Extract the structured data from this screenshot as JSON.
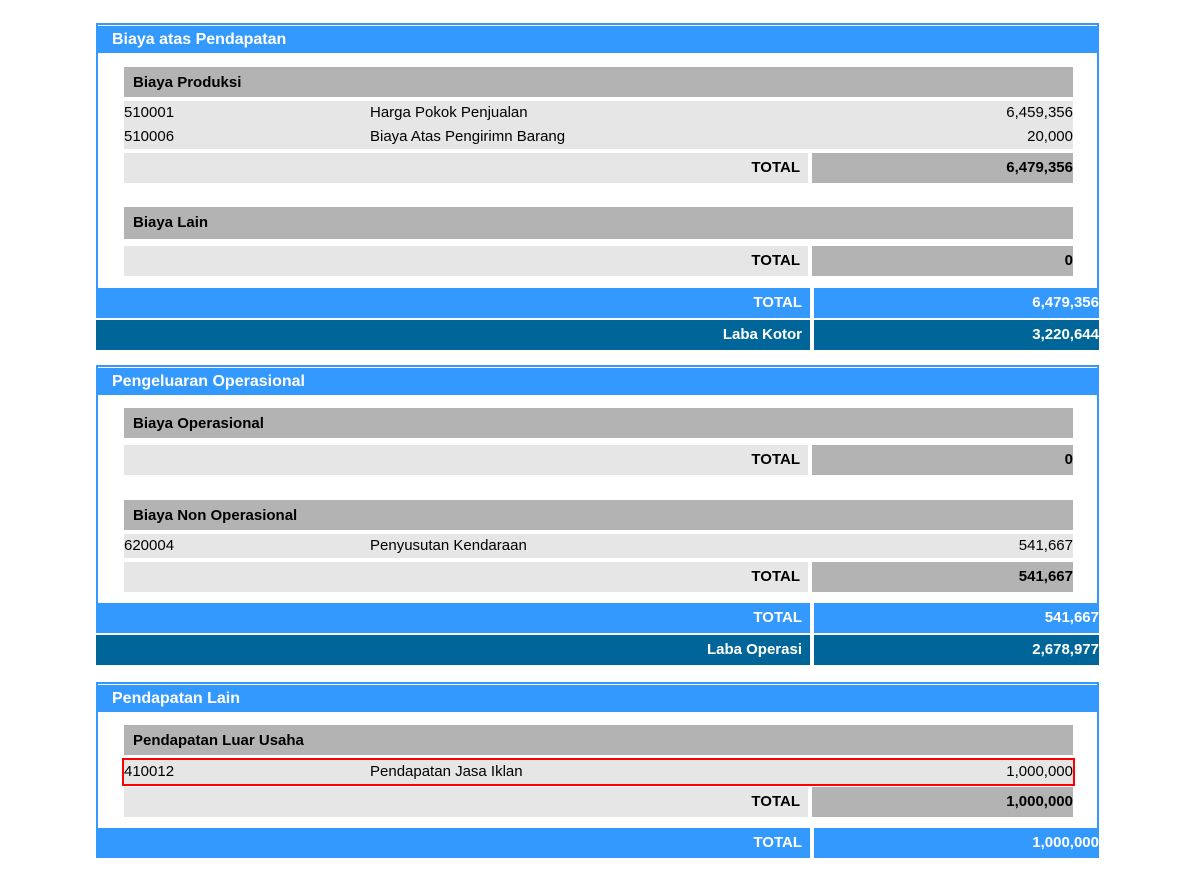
{
  "sections": [
    {
      "title": "Biaya atas Pendapatan",
      "groups": [
        {
          "title": "Biaya Produksi",
          "rows": [
            {
              "code": "510001",
              "name": "Harga Pokok Penjualan",
              "amount": "6,459,356"
            },
            {
              "code": "510006",
              "name": "Biaya Atas Pengirimn Barang",
              "amount": "20,000"
            }
          ],
          "total_label": "TOTAL",
          "total_value": "6,479,356"
        },
        {
          "title": "Biaya Lain",
          "rows": [],
          "total_label": "TOTAL",
          "total_value": "0"
        }
      ],
      "total_label": "TOTAL",
      "total_value": "6,479,356",
      "summary_label": "Laba Kotor",
      "summary_value": "3,220,644"
    },
    {
      "title": "Pengeluaran Operasional",
      "groups": [
        {
          "title": "Biaya Operasional",
          "rows": [],
          "total_label": "TOTAL",
          "total_value": "0"
        },
        {
          "title": "Biaya Non Operasional",
          "rows": [
            {
              "code": "620004",
              "name": "Penyusutan Kendaraan",
              "amount": "541,667"
            }
          ],
          "total_label": "TOTAL",
          "total_value": "541,667"
        }
      ],
      "total_label": "TOTAL",
      "total_value": "541,667",
      "summary_label": "Laba Operasi",
      "summary_value": "2,678,977"
    },
    {
      "title": "Pendapatan Lain",
      "groups": [
        {
          "title": "Pendapatan Luar Usaha",
          "rows": [
            {
              "code": "410012",
              "name": "Pendapatan Jasa Iklan",
              "amount": "1,000,000"
            }
          ],
          "total_label": "TOTAL",
          "total_value": "1,000,000"
        }
      ],
      "total_label": "TOTAL",
      "total_value": "1,000,000"
    }
  ],
  "colors": {
    "section_blue": "#3399ff",
    "summary_dark": "#006699",
    "group_gray": "#b3b3b3",
    "row_gray": "#e6e6e6",
    "highlight_red": "#ff0000"
  }
}
